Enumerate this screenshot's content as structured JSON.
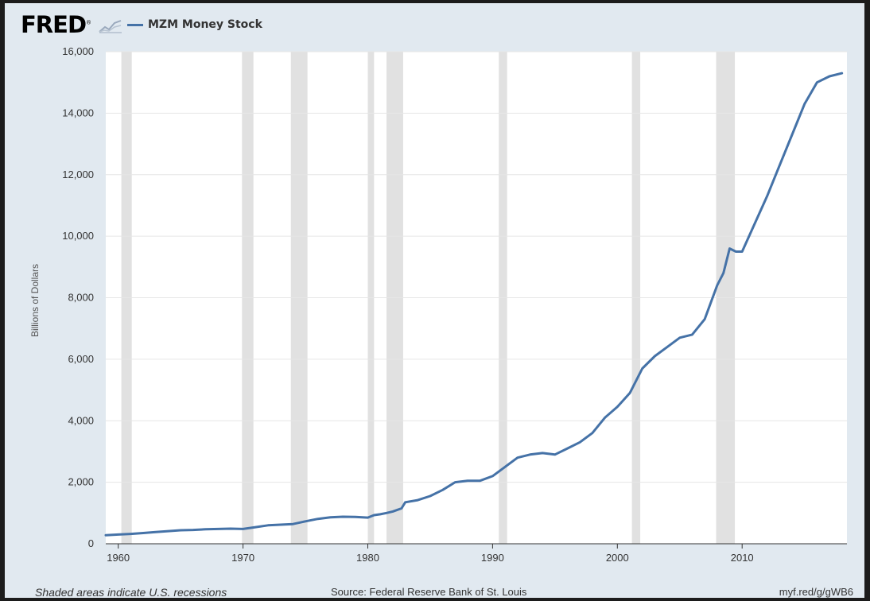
{
  "header": {
    "logo_text": "FRED",
    "logo_mark": "®"
  },
  "footer": {
    "recession_note": "Shaded areas indicate U.S. recessions",
    "source": "Source: Federal Reserve Bank of St. Louis",
    "short_url": "myf.red/g/gWB6"
  },
  "icons": {
    "logo_graph": "small-line-graph-icon"
  },
  "colors": {
    "series": "#4572a7",
    "plot_background": "#ffffff",
    "panel_background": "#e1e9f0",
    "recession_shading": "#e1e1e1",
    "frame": "#1c1c1c"
  },
  "chart_data": {
    "type": "line",
    "title": "",
    "ylabel": "Billions of Dollars",
    "xlabel": "",
    "xlim": [
      1959.0,
      2018.4
    ],
    "ylim": [
      0,
      16000
    ],
    "x_ticks": [
      1960,
      1970,
      1980,
      1990,
      2000,
      2010
    ],
    "x_tick_labels": [
      "1960",
      "1970",
      "1980",
      "1990",
      "2000",
      "2010"
    ],
    "y_ticks": [
      0,
      2000,
      4000,
      6000,
      8000,
      10000,
      12000,
      14000,
      16000
    ],
    "y_tick_labels": [
      "0",
      "2,000",
      "4,000",
      "6,000",
      "8,000",
      "10,000",
      "12,000",
      "14,000",
      "16,000"
    ],
    "grid": true,
    "legend_placement": "top-left",
    "recessions": [
      [
        "1960-04",
        "1961-02"
      ],
      [
        "1969-12",
        "1970-11"
      ],
      [
        "1973-11",
        "1975-03"
      ],
      [
        "1980-01",
        "1980-07"
      ],
      [
        "1981-07",
        "1982-11"
      ],
      [
        "1990-07",
        "1991-03"
      ],
      [
        "2001-03",
        "2001-11"
      ],
      [
        "2007-12",
        "2009-06"
      ]
    ],
    "series": [
      {
        "name": "MZM Money Stock",
        "x": [
          1959.0,
          1960.0,
          1961.0,
          1962.0,
          1963.0,
          1964.0,
          1965.0,
          1966.0,
          1967.0,
          1968.0,
          1969.0,
          1970.0,
          1971.0,
          1972.0,
          1973.0,
          1974.0,
          1975.0,
          1976.0,
          1977.0,
          1978.0,
          1979.0,
          1980.0,
          1980.5,
          1981.0,
          1981.5,
          1982.0,
          1982.7,
          1983.0,
          1984.0,
          1985.0,
          1986.0,
          1987.0,
          1988.0,
          1989.0,
          1990.0,
          1991.0,
          1992.0,
          1993.0,
          1994.0,
          1995.0,
          1996.0,
          1997.0,
          1998.0,
          1999.0,
          2000.0,
          2001.0,
          2002.0,
          2003.0,
          2004.0,
          2005.0,
          2006.0,
          2007.0,
          2008.0,
          2008.5,
          2009.0,
          2009.5,
          2010.0,
          2011.0,
          2012.0,
          2013.0,
          2014.0,
          2015.0,
          2016.0,
          2017.0,
          2018.0
        ],
        "y": [
          280,
          300,
          320,
          350,
          380,
          410,
          440,
          450,
          470,
          480,
          490,
          480,
          540,
          600,
          620,
          640,
          730,
          810,
          860,
          880,
          870,
          850,
          930,
          960,
          1000,
          1050,
          1150,
          1350,
          1420,
          1550,
          1750,
          2000,
          2050,
          2050,
          2200,
          2500,
          2800,
          2900,
          2950,
          2900,
          3100,
          3300,
          3600,
          4100,
          4450,
          4900,
          5700,
          6100,
          6400,
          6700,
          6800,
          7300,
          8400,
          8800,
          9600,
          9500,
          9500,
          10400,
          11300,
          12300,
          13300,
          14300,
          15000,
          15200,
          15300
        ]
      }
    ]
  }
}
